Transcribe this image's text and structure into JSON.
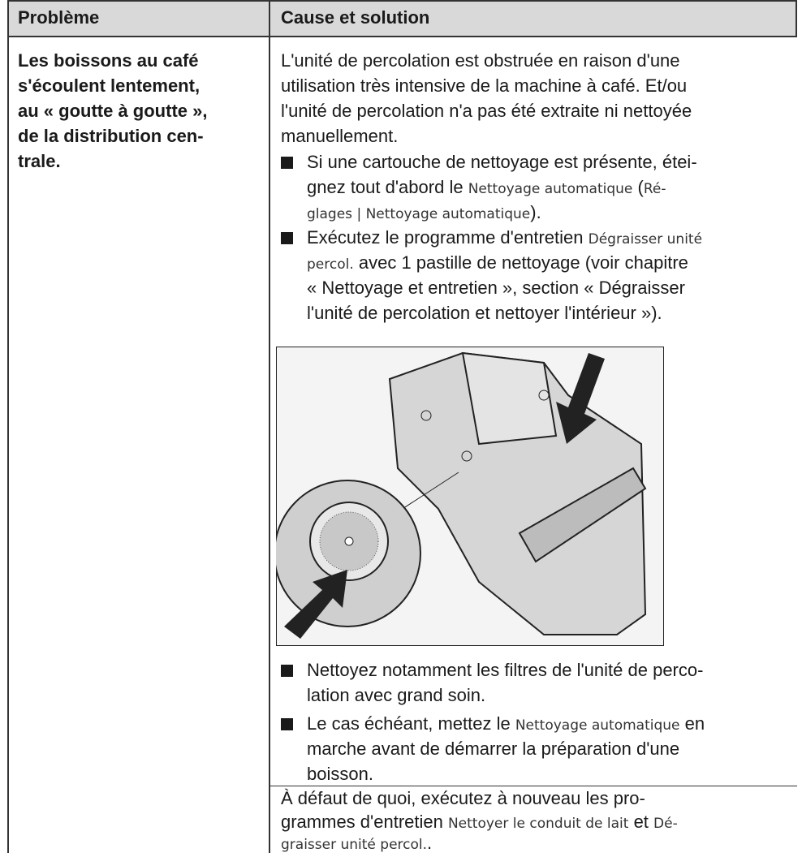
{
  "table": {
    "headers": [
      "Problème",
      "Cause et solution"
    ],
    "problem": [
      "Les boissons au café",
      "s'écoulent lentement,",
      "au « goutte à goutte »,",
      "de la distribution cen-",
      "trale."
    ],
    "cause": {
      "intro": [
        [
          "L'unité de percolation est obstruée en raison d'une"
        ],
        [
          "utilisation très intensive de la machine à café. Et/ou"
        ],
        [
          "l'unité de percolation n'a pas été extraite ni nettoyée"
        ],
        [
          "manuellement."
        ]
      ],
      "bullets_before": [
        [
          [
            "Si une cartouche de nettoyage est présente, étei-"
          ],
          [
            "gnez tout d'abord le ",
            {
              "text": "Nettoyage automatique",
              "style": "display"
            },
            " (",
            {
              "text": "Ré-",
              "style": "display"
            }
          ],
          [
            {
              "text": "glages | Nettoyage automatique",
              "style": "display"
            },
            ")."
          ]
        ],
        [
          [
            "Exécutez le programme d'entretien ",
            {
              "text": "Dégraisser unité",
              "style": "display"
            }
          ],
          [
            {
              "text": "percol.",
              "style": "display"
            },
            " avec 1 pastille de nettoyage (voir chapitre"
          ],
          [
            "« Nettoyage et entretien », section « Dégraisser"
          ],
          [
            "l'unité de percolation et nettoyer l'intérieur »)."
          ]
        ]
      ],
      "bullets_after": [
        [
          [
            "Nettoyez notamment les filtres de l'unité de perco-"
          ],
          [
            "lation avec grand soin."
          ]
        ],
        [
          [
            "Le cas échéant, mettez le ",
            {
              "text": "Nettoyage automatique",
              "style": "display"
            },
            " en"
          ],
          [
            "marche avant de démarrer la préparation d'une"
          ],
          [
            "boisson."
          ]
        ]
      ],
      "closing": [
        [
          "À défaut de quoi, exécutez à nouveau les pro-"
        ],
        [
          "grammes d'entretien ",
          {
            "text": "Nettoyer le conduit de lait",
            "style": "display"
          },
          " et ",
          {
            "text": "Dé-",
            "style": "display"
          }
        ],
        [
          {
            "text": "graisser unité percol.",
            "style": "display"
          },
          "."
        ]
      ]
    }
  }
}
